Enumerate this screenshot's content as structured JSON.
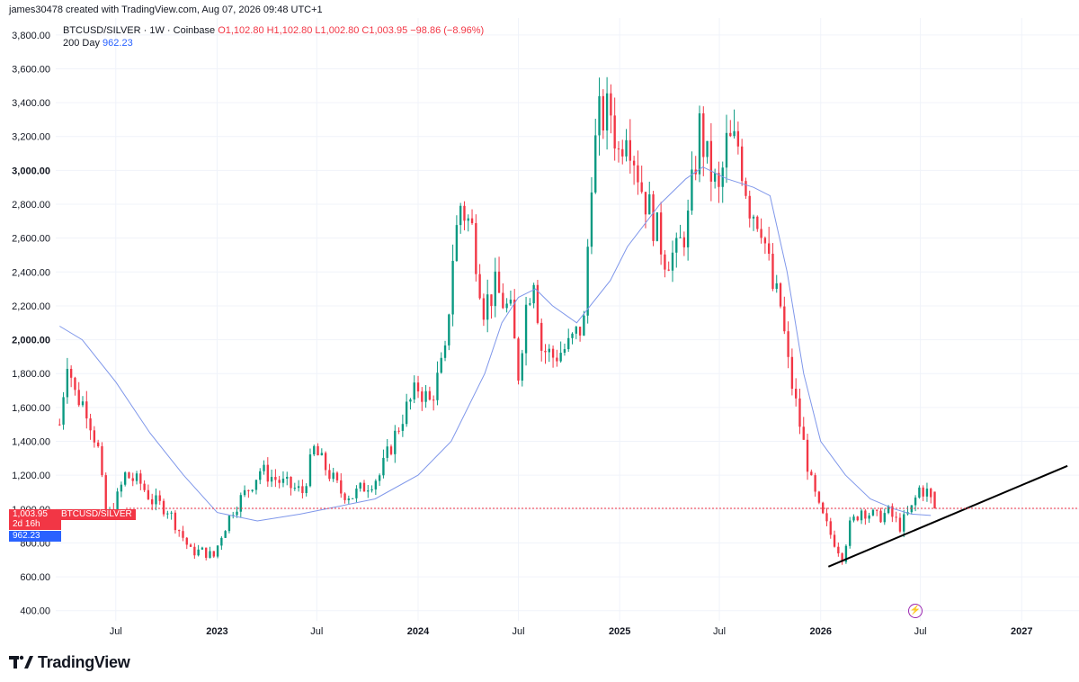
{
  "header": {
    "credit": "james30478 created with TradingView.com, Aug 07, 2026 09:48 UTC+1"
  },
  "legend": {
    "symbol": "BTCUSD/SILVER · 1W · Coinbase",
    "ohlc": "O1,102.80 H1,102.80 L1,002.80 C1,003.95 −98.86 (−8.96%)",
    "ma_label": "200 Day",
    "ma_value": "962.23"
  },
  "badges": {
    "price": "1,003.95",
    "symbol": "BTCUSD/SILVER",
    "countdown": "2d 16h",
    "ma": "962.23"
  },
  "brand": {
    "name": "TradingView"
  },
  "colors": {
    "up": "#089981",
    "down": "#f23645",
    "ma": "#5b7be8",
    "trend": "#000000",
    "grid": "#f0f3fa"
  },
  "chart_data": {
    "type": "candlestick",
    "title": "",
    "ylim": [
      340,
      3900
    ],
    "y_ticks": [
      "400.00",
      "600.00",
      "800.00",
      "1,000.00",
      "1,200.00",
      "1,400.00",
      "1,600.00",
      "1,800.00",
      "2,000.00",
      "2,200.00",
      "2,400.00",
      "2,600.00",
      "2,800.00",
      "3,000.00",
      "3,200.00",
      "3,400.00",
      "3,600.00",
      "3,800.00"
    ],
    "y_tick_values": [
      400,
      600,
      800,
      1000,
      1200,
      1400,
      1600,
      1800,
      2000,
      2200,
      2400,
      2600,
      2800,
      3000,
      3200,
      3400,
      3600,
      3800
    ],
    "y_bold": [
      "2,000.00",
      "3,000.00"
    ],
    "x_ticks": [
      "Jul",
      "2023",
      "Jul",
      "2024",
      "Jul",
      "2025",
      "Jul",
      "2026",
      "Jul",
      "2027"
    ],
    "x_tick_dates": [
      "2022-07-01",
      "2023-01-01",
      "2023-07-01",
      "2024-01-01",
      "2024-07-01",
      "2025-01-01",
      "2025-07-01",
      "2026-01-01",
      "2026-07-01",
      "2027-01-01"
    ],
    "x_bold": [
      "2023",
      "2024",
      "2025",
      "2026",
      "2027"
    ],
    "x_range": [
      "2022-03-14",
      "2027-04-15"
    ],
    "grid": true,
    "last_price": 1003.95,
    "ma_200_last": 962.23,
    "ma_points": [
      [
        "2022-03-21",
        2080
      ],
      [
        "2022-05-01",
        2000
      ],
      [
        "2022-07-01",
        1750
      ],
      [
        "2022-09-01",
        1450
      ],
      [
        "2022-11-01",
        1200
      ],
      [
        "2023-01-01",
        980
      ],
      [
        "2023-03-15",
        930
      ],
      [
        "2023-06-01",
        970
      ],
      [
        "2023-08-01",
        1010
      ],
      [
        "2023-10-15",
        1060
      ],
      [
        "2024-01-01",
        1200
      ],
      [
        "2024-03-01",
        1400
      ],
      [
        "2024-05-01",
        1800
      ],
      [
        "2024-06-01",
        2100
      ],
      [
        "2024-07-01",
        2250
      ],
      [
        "2024-08-01",
        2300
      ],
      [
        "2024-09-01",
        2200
      ],
      [
        "2024-10-15",
        2100
      ],
      [
        "2024-12-15",
        2350
      ],
      [
        "2025-01-15",
        2550
      ],
      [
        "2025-03-15",
        2800
      ],
      [
        "2025-05-01",
        2950
      ],
      [
        "2025-06-01",
        3020
      ],
      [
        "2025-07-15",
        2950
      ],
      [
        "2025-09-01",
        2900
      ],
      [
        "2025-10-01",
        2850
      ],
      [
        "2025-11-01",
        2400
      ],
      [
        "2025-12-01",
        1800
      ],
      [
        "2026-01-01",
        1400
      ],
      [
        "2026-02-15",
        1200
      ],
      [
        "2026-04-01",
        1060
      ],
      [
        "2026-05-15",
        1000
      ],
      [
        "2026-06-15",
        970
      ],
      [
        "2026-07-20",
        962
      ]
    ],
    "anchors": [
      [
        "2022-03-21",
        1500
      ],
      [
        "2022-04-04",
        1900
      ],
      [
        "2022-04-18",
        1680
      ],
      [
        "2022-05-09",
        1600
      ],
      [
        "2022-05-30",
        1350
      ],
      [
        "2022-06-13",
        950
      ],
      [
        "2022-06-27",
        1000
      ],
      [
        "2022-07-18",
        1200
      ],
      [
        "2022-08-15",
        1150
      ],
      [
        "2022-09-05",
        1050
      ],
      [
        "2022-10-03",
        1000
      ],
      [
        "2022-11-14",
        750
      ],
      [
        "2022-12-05",
        750
      ],
      [
        "2022-12-26",
        720
      ],
      [
        "2023-01-09",
        850
      ],
      [
        "2023-01-30",
        1000
      ],
      [
        "2023-02-27",
        1120
      ],
      [
        "2023-03-20",
        1230
      ],
      [
        "2023-05-01",
        1150
      ],
      [
        "2023-06-05",
        1100
      ],
      [
        "2023-06-26",
        1350
      ],
      [
        "2023-08-14",
        1100
      ],
      [
        "2023-09-04",
        1080
      ],
      [
        "2023-10-23",
        1200
      ],
      [
        "2023-12-04",
        1550
      ],
      [
        "2024-01-01",
        1720
      ],
      [
        "2024-01-22",
        1630
      ],
      [
        "2024-02-19",
        1900
      ],
      [
        "2024-03-04",
        2500
      ],
      [
        "2024-03-18",
        2800
      ],
      [
        "2024-04-08",
        2650
      ],
      [
        "2024-04-29",
        2200
      ],
      [
        "2024-05-20",
        2300
      ],
      [
        "2024-06-17",
        2150
      ],
      [
        "2024-07-01",
        1800
      ],
      [
        "2024-07-15",
        2200
      ],
      [
        "2024-07-29",
        2400
      ],
      [
        "2024-08-12",
        1950
      ],
      [
        "2024-09-02",
        1900
      ],
      [
        "2024-09-30",
        1960
      ],
      [
        "2024-10-28",
        2100
      ],
      [
        "2024-11-11",
        3000
      ],
      [
        "2024-11-25",
        3300
      ],
      [
        "2024-12-16",
        3350
      ],
      [
        "2024-12-30",
        3100
      ],
      [
        "2025-01-13",
        3300
      ],
      [
        "2025-02-10",
        2900
      ],
      [
        "2025-03-03",
        2700
      ],
      [
        "2025-03-24",
        2500
      ],
      [
        "2025-04-14",
        2500
      ],
      [
        "2025-05-05",
        2700
      ],
      [
        "2025-05-26",
        3250
      ],
      [
        "2025-06-09",
        3050
      ],
      [
        "2025-06-30",
        2850
      ],
      [
        "2025-07-14",
        3150
      ],
      [
        "2025-08-04",
        3150
      ],
      [
        "2025-08-25",
        2800
      ],
      [
        "2025-09-15",
        2700
      ],
      [
        "2025-10-06",
        2300
      ],
      [
        "2025-10-20",
        2200
      ],
      [
        "2025-11-03",
        1850
      ],
      [
        "2025-11-24",
        1500
      ],
      [
        "2025-12-15",
        1150
      ],
      [
        "2025-12-29",
        1000
      ],
      [
        "2026-01-19",
        850
      ],
      [
        "2026-02-09",
        720
      ],
      [
        "2026-02-23",
        900
      ],
      [
        "2026-03-16",
        1000
      ],
      [
        "2026-04-13",
        950
      ],
      [
        "2026-05-04",
        980
      ],
      [
        "2026-05-25",
        900
      ],
      [
        "2026-06-15",
        1000
      ],
      [
        "2026-06-29",
        1120
      ],
      [
        "2026-07-13",
        1100
      ],
      [
        "2026-07-27",
        1003.95
      ]
    ],
    "trendline": [
      [
        "2026-01-15",
        660
      ],
      [
        "2027-03-25",
        1255
      ]
    ]
  }
}
